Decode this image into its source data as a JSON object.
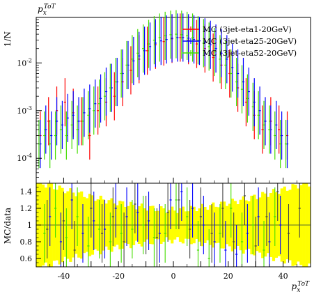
{
  "chart_data": [
    {
      "type": "scatter",
      "title": "",
      "top_left_label": "p_x^{ToT}",
      "xlabel": "p_x^{ToT}",
      "ylabel": "1/N",
      "yscale": "log",
      "xlim": [
        -50,
        50
      ],
      "ylim": [
        3e-05,
        0.09
      ],
      "yticks": [
        0.0001,
        0.001,
        0.01
      ],
      "ytick_labels": [
        "10",
        "10",
        "10"
      ],
      "ytick_exponents": [
        "-4",
        "-3",
        "-2"
      ],
      "legend_position": "top-right",
      "series": [
        {
          "name": "MC (3jet-eta1-20GeV)",
          "color": "#ff0000",
          "x": [
            -48.5,
            -45.5,
            -42.5,
            -39.5,
            -36.5,
            -33.5,
            -30.5,
            -27.5,
            -24.5,
            -21.5,
            -18.5,
            -15.5,
            -12.5,
            -9.5,
            -6.5,
            -3.5,
            -0.5,
            2.5,
            5.5,
            8.5,
            11.5,
            14.5,
            17.5,
            20.5,
            23.5,
            26.5,
            29.5,
            32.5,
            35.5,
            38.5,
            41.5
          ],
          "y": [
            0.0003,
            0.0006,
            0.001,
            0.0015,
            0.0009,
            0.0006,
            0.0003,
            0.001,
            0.0015,
            0.002,
            0.004,
            0.007,
            0.012,
            0.018,
            0.024,
            0.028,
            0.032,
            0.034,
            0.03,
            0.025,
            0.02,
            0.013,
            0.009,
            0.006,
            0.003,
            0.0015,
            0.0008,
            0.0004,
            0.0006,
            0.0004,
            0.0003
          ]
        },
        {
          "name": "MC (3jet-eta25-20GeV)",
          "color": "#0000ff",
          "x": [
            -48.5,
            -46.5,
            -44.5,
            -42.5,
            -40.5,
            -38.5,
            -36.5,
            -34.5,
            -32.5,
            -30.5,
            -28.5,
            -26.5,
            -24.5,
            -22.5,
            -20.5,
            -18.5,
            -16.5,
            -14.5,
            -12.5,
            -10.5,
            -8.5,
            -6.5,
            -4.5,
            -2.5,
            -0.5,
            1.5,
            3.5,
            5.5,
            7.5,
            9.5,
            11.5,
            13.5,
            15.5,
            17.5,
            19.5,
            21.5,
            23.5,
            25.5,
            27.5,
            29.5,
            31.5,
            33.5,
            35.5,
            37.5,
            39.5,
            41.5
          ],
          "y": [
            0.0002,
            0.0004,
            0.0003,
            0.0006,
            0.0005,
            0.0007,
            0.0008,
            0.0006,
            0.0009,
            0.0011,
            0.0014,
            0.0018,
            0.0025,
            0.003,
            0.004,
            0.006,
            0.009,
            0.011,
            0.014,
            0.018,
            0.022,
            0.026,
            0.029,
            0.031,
            0.033,
            0.034,
            0.034,
            0.033,
            0.031,
            0.029,
            0.027,
            0.024,
            0.02,
            0.016,
            0.012,
            0.008,
            0.006,
            0.004,
            0.0025,
            0.0015,
            0.001,
            0.0006,
            0.0004,
            0.0005,
            0.0003,
            0.0002
          ]
        },
        {
          "name": "MC (3jet-eta52-20GeV)",
          "color": "#44dd00",
          "x": [
            -49,
            -47,
            -45,
            -43,
            -41,
            -39,
            -37,
            -35,
            -33,
            -31,
            -29,
            -27,
            -25,
            -23,
            -21,
            -19,
            -17,
            -15,
            -13,
            -11,
            -9,
            -7,
            -5,
            -3,
            -1,
            1,
            3,
            5,
            7,
            9,
            11,
            13,
            15,
            17,
            19,
            21,
            23,
            25,
            27,
            29,
            31,
            33,
            35,
            37,
            39,
            41
          ],
          "y": [
            0.0002,
            0.0003,
            0.0002,
            0.0003,
            0.0004,
            0.0003,
            0.0005,
            0.0004,
            0.0006,
            0.0008,
            0.001,
            0.0014,
            0.002,
            0.003,
            0.004,
            0.006,
            0.009,
            0.012,
            0.016,
            0.02,
            0.025,
            0.03,
            0.034,
            0.037,
            0.039,
            0.04,
            0.039,
            0.037,
            0.034,
            0.03,
            0.026,
            0.022,
            0.017,
            0.012,
            0.009,
            0.006,
            0.004,
            0.0028,
            0.0018,
            0.0012,
            0.0008,
            0.0005,
            0.0004,
            0.0003,
            0.0002,
            0.0002
          ]
        }
      ]
    },
    {
      "type": "scatter",
      "title": "",
      "xlabel": "p_x^{ToT}",
      "ylabel": "MC/data",
      "xlim": [
        -50,
        50
      ],
      "ylim": [
        0.5,
        1.5
      ],
      "xticks": [
        -40,
        -20,
        0,
        20,
        40
      ],
      "xtick_labels": [
        "-40",
        "-20",
        "0",
        "20",
        "40"
      ],
      "yticks": [
        0.6,
        0.8,
        1.0,
        1.2,
        1.4
      ],
      "ytick_labels": [
        "0.6",
        "0.8",
        "1",
        "1.2",
        "1.4"
      ],
      "band_color": "#ffff00",
      "reference_line": 1.0,
      "series": [
        {
          "name": "MC (3jet-eta1-20GeV)",
          "color": "#444444",
          "x": [
            -46,
            -40,
            -36,
            -30,
            -26,
            -22,
            -18,
            -14,
            -10,
            -6,
            -2,
            2,
            6,
            10,
            14,
            18,
            22,
            26,
            30,
            34,
            38,
            42,
            46
          ],
          "y": [
            0.95,
            1.05,
            0.7,
            1.2,
            0.9,
            1.1,
            0.8,
            1.25,
            1.0,
            0.85,
            1.15,
            1.3,
            0.95,
            1.1,
            0.9,
            1.2,
            0.8,
            1.35,
            0.75,
            1.1,
            1.4,
            0.9,
            1.2
          ]
        },
        {
          "name": "MC (3jet-eta25-20GeV)",
          "color": "#0000ff",
          "x": [
            -45,
            -41,
            -37,
            -33,
            -29,
            -25,
            -21,
            -17,
            -13,
            -9,
            -5,
            -1,
            3,
            7,
            11,
            15,
            19,
            23,
            27,
            31,
            35,
            39
          ],
          "y": [
            1.1,
            0.8,
            1.3,
            0.9,
            1.05,
            0.95,
            1.2,
            1.1,
            1.15,
            1.05,
            0.9,
            1.3,
            1.4,
            1.2,
            1.0,
            0.8,
            0.7,
            0.65,
            0.9,
            1.1,
            0.8,
            1.0
          ]
        },
        {
          "name": "MC (3jet-eta52-20GeV)",
          "color": "#44dd00",
          "x": [
            -47,
            -43,
            -39,
            -35,
            -31,
            -27,
            -23,
            -19,
            -15,
            -11,
            -7,
            -3,
            1,
            5,
            9,
            13,
            17,
            21,
            25,
            29,
            33,
            37
          ],
          "y": [
            0.9,
            1.2,
            0.85,
            1.1,
            0.75,
            0.95,
            0.8,
            0.9,
            0.95,
            1.0,
            0.85,
            0.9,
            1.3,
            1.1,
            0.7,
            0.6,
            0.9,
            1.2,
            0.8,
            1.0,
            0.7,
            1.1
          ]
        }
      ]
    }
  ]
}
